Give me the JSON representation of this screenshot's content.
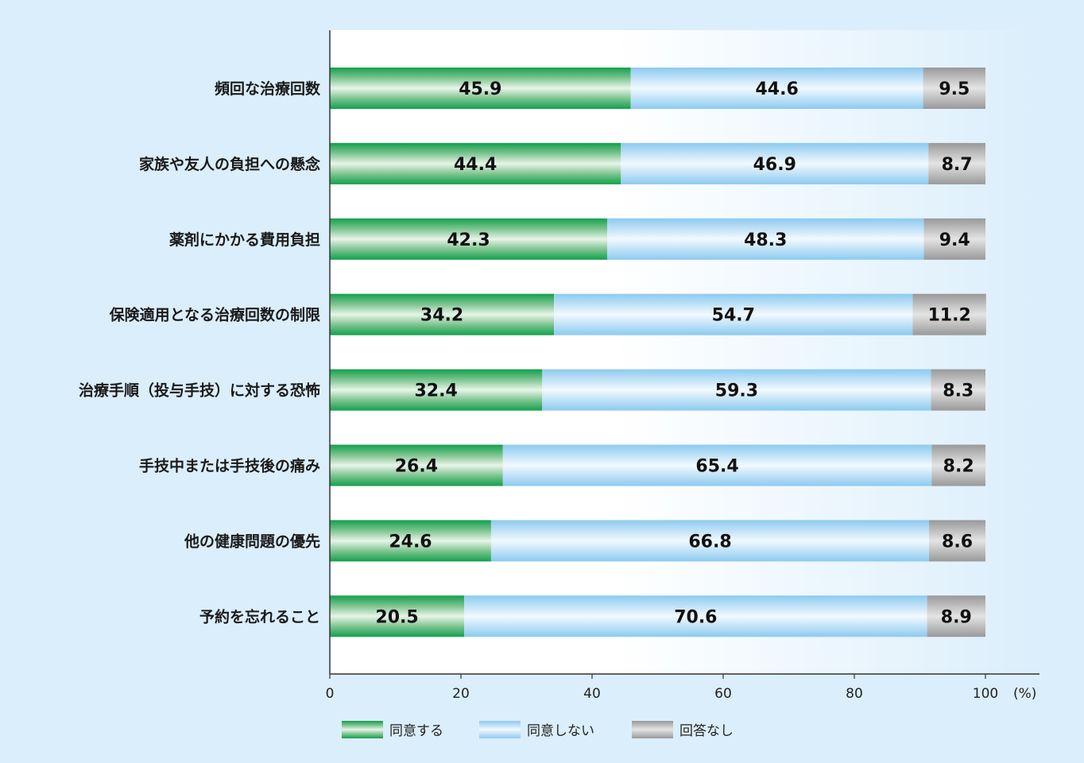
{
  "chart_data": {
    "type": "bar",
    "orientation": "horizontal",
    "stacked": true,
    "categories": [
      "頻回な治療回数",
      "家族や友人の負担への懸念",
      "薬剤にかかる費用負担",
      "保険適用となる治療回数の制限",
      "治療手順（投与手技）に対する恐怖",
      "手技中または手技後の痛み",
      "他の健康問題の優先",
      "予約を忘れること"
    ],
    "series": [
      {
        "name": "同意する",
        "color": "#16a34f",
        "values": [
          45.9,
          44.4,
          42.3,
          34.2,
          32.4,
          26.4,
          24.6,
          20.5
        ]
      },
      {
        "name": "同意しない",
        "color": "#8ccaf0",
        "values": [
          44.6,
          46.9,
          48.3,
          54.7,
          59.3,
          65.4,
          66.8,
          70.6
        ]
      },
      {
        "name": "回答なし",
        "color": "#9a9a9a",
        "values": [
          9.5,
          8.7,
          9.4,
          11.2,
          8.3,
          8.2,
          8.6,
          8.9
        ]
      }
    ],
    "xlim": [
      0,
      100
    ],
    "xticks": [
      "0",
      "20",
      "40",
      "60",
      "80",
      "100"
    ],
    "xunit": "(%)",
    "legend_position": "bottom",
    "grid": false
  }
}
